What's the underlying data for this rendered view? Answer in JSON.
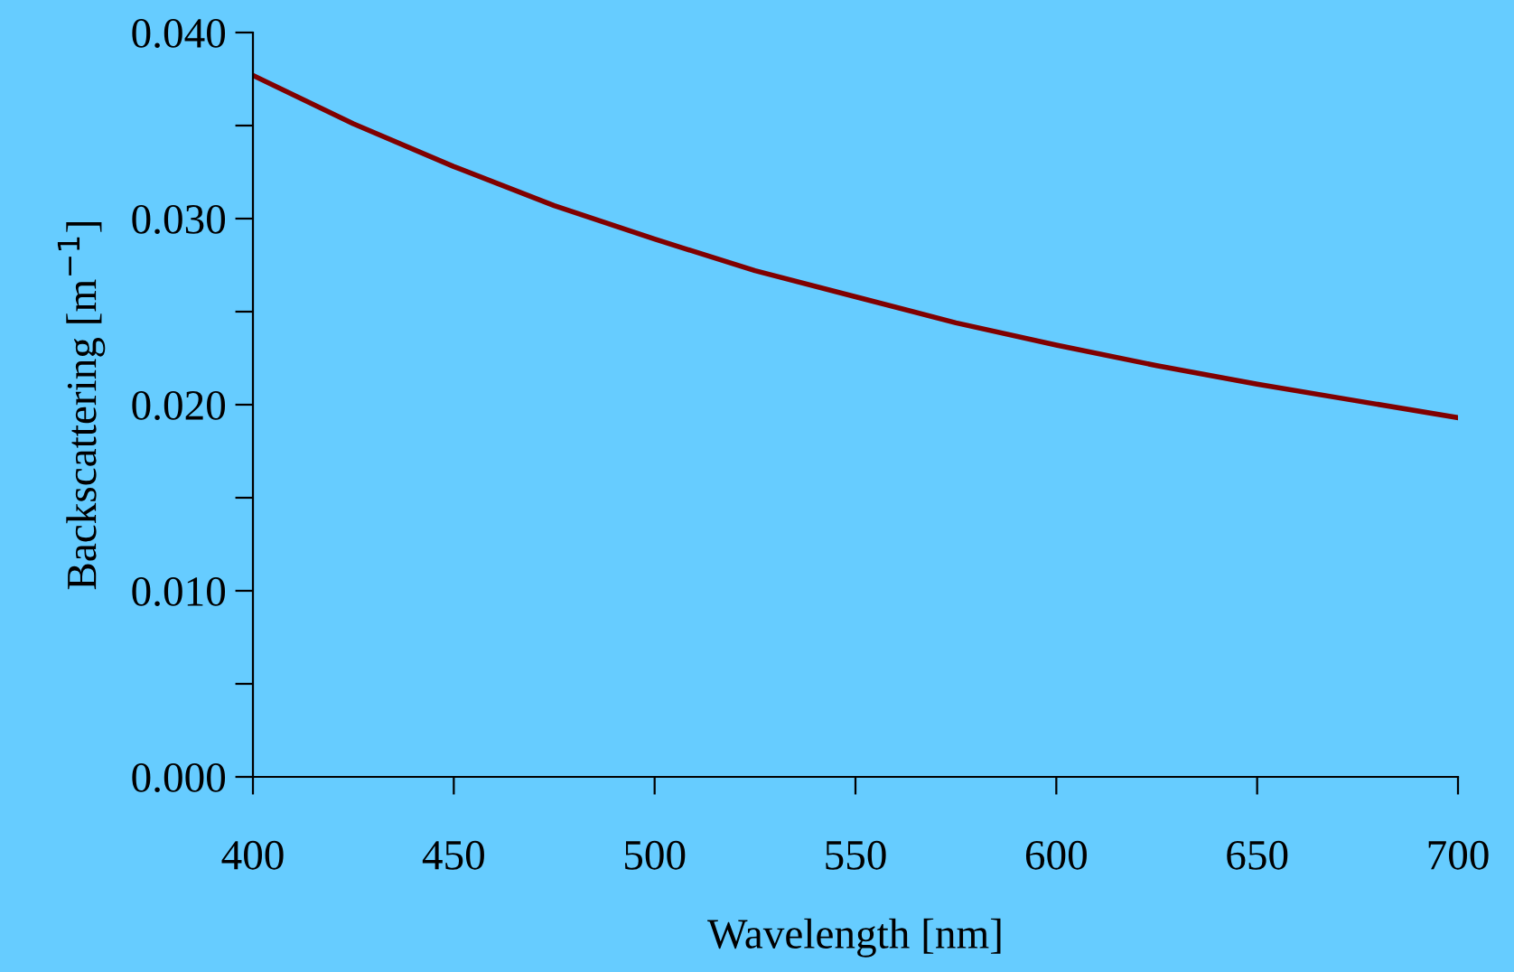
{
  "chart_data": {
    "type": "line",
    "xlabel": "Wavelength [nm]",
    "ylabel": "Backscattering [m$^{−1}$]",
    "x": [
      400,
      425,
      450,
      475,
      500,
      525,
      550,
      575,
      600,
      625,
      650,
      675,
      700
    ],
    "series": [
      {
        "color": "#800000",
        "values": [
          0.0377,
          0.0351,
          0.0328,
          0.0307,
          0.0289,
          0.0272,
          0.0258,
          0.0244,
          0.0232,
          0.0221,
          0.0211,
          0.0202,
          0.0193
        ]
      }
    ],
    "xlim": [
      400,
      700
    ],
    "xticks": [
      400,
      450,
      500,
      550,
      600,
      650,
      700
    ],
    "ylim": [
      0,
      0.04
    ],
    "yticks": [
      {
        "value": 0,
        "label": "0.000"
      },
      {
        "value": 0.005,
        "label": null
      },
      {
        "value": 0.01,
        "label": "0.010"
      },
      {
        "value": 0.015,
        "label": null
      },
      {
        "value": 0.02,
        "label": "0.020"
      },
      {
        "value": 0.025,
        "label": null
      },
      {
        "value": 0.03,
        "label": "0.030"
      },
      {
        "value": 0.035,
        "label": null
      },
      {
        "value": 0.04,
        "label": "0.040"
      }
    ],
    "grid": false,
    "legend": false,
    "marker": "none",
    "line_style": "solid"
  }
}
